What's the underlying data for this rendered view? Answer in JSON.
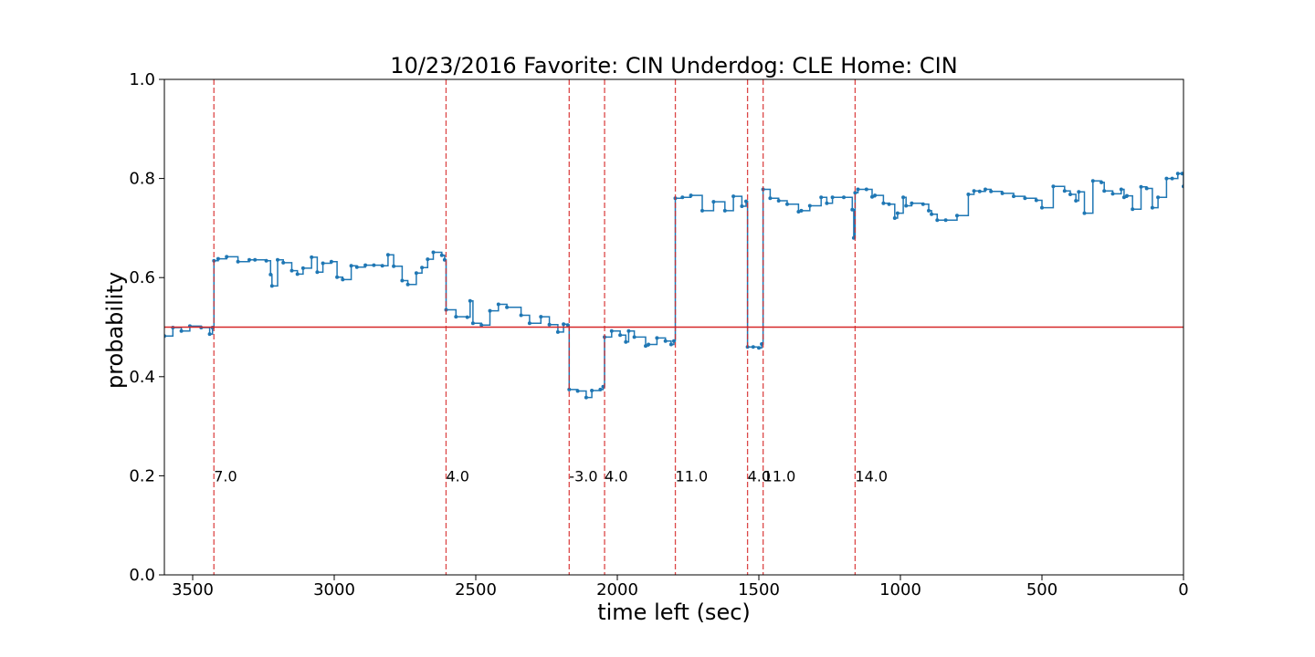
{
  "chart_data": {
    "type": "line",
    "title": "10/23/2016 Favorite: CIN Underdog: CLE Home: CIN",
    "xlabel": "time left (sec)",
    "ylabel": "probability",
    "xlim": [
      3600,
      0
    ],
    "ylim": [
      0.0,
      1.0
    ],
    "x_ticks": [
      3500,
      3000,
      2500,
      2000,
      1500,
      1000,
      500,
      0
    ],
    "x_tick_labels": [
      "3500",
      "3000",
      "2500",
      "2000",
      "1500",
      "1000",
      "500",
      "0"
    ],
    "y_ticks": [
      0.0,
      0.2,
      0.4,
      0.6,
      0.8,
      1.0
    ],
    "y_tick_labels": [
      "0.0",
      "0.2",
      "0.4",
      "0.6",
      "0.8",
      "1.0"
    ],
    "grid": false,
    "reference_line": {
      "y": 0.5,
      "color": "#d62728"
    },
    "events": [
      {
        "x": 3425,
        "label": "7.0"
      },
      {
        "x": 2605,
        "label": "4.0"
      },
      {
        "x": 2170,
        "label": "-3.0"
      },
      {
        "x": 2045,
        "label": "4.0"
      },
      {
        "x": 1795,
        "label": "11.0"
      },
      {
        "x": 1540,
        "label": "4.0"
      },
      {
        "x": 1485,
        "label": "11.0"
      },
      {
        "x": 1160,
        "label": "14.0"
      }
    ],
    "series": [
      {
        "color": "#1f77b4",
        "x": [
          3600,
          3570,
          3540,
          3510,
          3470,
          3440,
          3430,
          3425,
          3410,
          3380,
          3340,
          3300,
          3280,
          3240,
          3225,
          3220,
          3200,
          3180,
          3150,
          3130,
          3110,
          3080,
          3060,
          3040,
          3010,
          2990,
          2970,
          2940,
          2920,
          2890,
          2860,
          2830,
          2810,
          2790,
          2760,
          2740,
          2710,
          2690,
          2670,
          2650,
          2620,
          2610,
          2605,
          2570,
          2530,
          2520,
          2510,
          2480,
          2450,
          2420,
          2390,
          2340,
          2310,
          2270,
          2240,
          2210,
          2190,
          2175,
          2170,
          2140,
          2110,
          2090,
          2060,
          2050,
          2045,
          2020,
          1990,
          1970,
          1960,
          1940,
          1900,
          1890,
          1860,
          1830,
          1810,
          1800,
          1795,
          1770,
          1740,
          1700,
          1660,
          1620,
          1590,
          1560,
          1545,
          1540,
          1520,
          1500,
          1490,
          1485,
          1460,
          1430,
          1400,
          1360,
          1350,
          1320,
          1280,
          1260,
          1240,
          1200,
          1170,
          1165,
          1160,
          1150,
          1120,
          1100,
          1090,
          1060,
          1040,
          1020,
          1010,
          990,
          980,
          960,
          920,
          900,
          890,
          870,
          840,
          800,
          760,
          740,
          720,
          700,
          680,
          640,
          600,
          560,
          520,
          500,
          460,
          420,
          400,
          380,
          370,
          350,
          320,
          290,
          280,
          250,
          220,
          210,
          200,
          180,
          150,
          130,
          110,
          90,
          60,
          40,
          20,
          5,
          0
        ],
        "y": [
          0.482,
          0.499,
          0.492,
          0.502,
          0.499,
          0.486,
          0.499,
          0.634,
          0.638,
          0.642,
          0.632,
          0.636,
          0.636,
          0.634,
          0.606,
          0.583,
          0.636,
          0.63,
          0.614,
          0.607,
          0.619,
          0.641,
          0.611,
          0.629,
          0.632,
          0.601,
          0.596,
          0.624,
          0.621,
          0.625,
          0.625,
          0.624,
          0.646,
          0.623,
          0.594,
          0.586,
          0.609,
          0.62,
          0.637,
          0.651,
          0.645,
          0.636,
          0.535,
          0.521,
          0.52,
          0.553,
          0.508,
          0.504,
          0.533,
          0.546,
          0.54,
          0.524,
          0.508,
          0.521,
          0.505,
          0.49,
          0.506,
          0.504,
          0.374,
          0.371,
          0.358,
          0.372,
          0.374,
          0.38,
          0.48,
          0.492,
          0.484,
          0.47,
          0.492,
          0.48,
          0.462,
          0.465,
          0.478,
          0.472,
          0.465,
          0.472,
          0.76,
          0.762,
          0.766,
          0.735,
          0.753,
          0.735,
          0.764,
          0.744,
          0.754,
          0.46,
          0.46,
          0.458,
          0.466,
          0.778,
          0.76,
          0.755,
          0.748,
          0.733,
          0.735,
          0.745,
          0.762,
          0.75,
          0.762,
          0.762,
          0.737,
          0.68,
          0.771,
          0.778,
          0.778,
          0.763,
          0.766,
          0.75,
          0.748,
          0.72,
          0.73,
          0.762,
          0.745,
          0.75,
          0.748,
          0.735,
          0.728,
          0.716,
          0.716,
          0.725,
          0.768,
          0.775,
          0.774,
          0.778,
          0.774,
          0.77,
          0.764,
          0.76,
          0.756,
          0.741,
          0.784,
          0.775,
          0.768,
          0.755,
          0.773,
          0.73,
          0.795,
          0.792,
          0.775,
          0.769,
          0.778,
          0.762,
          0.765,
          0.738,
          0.783,
          0.78,
          0.741,
          0.762,
          0.8,
          0.8,
          0.81,
          0.81,
          0.784
        ]
      }
    ]
  }
}
